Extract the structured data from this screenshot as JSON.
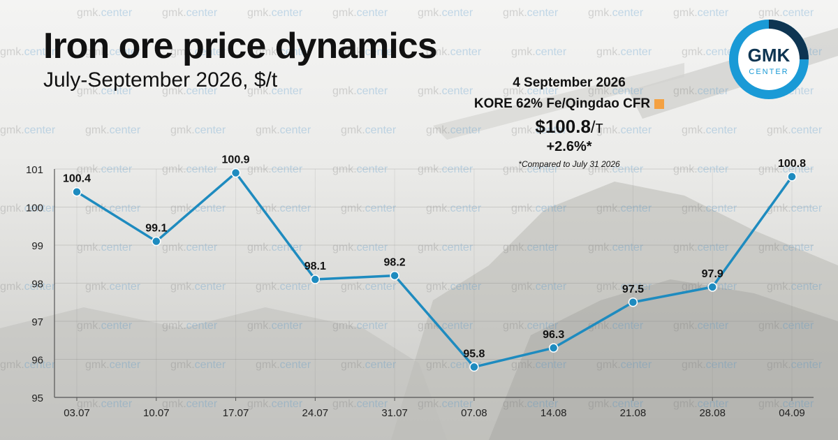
{
  "header": {
    "title": "Iron ore price dynamics",
    "subtitle": "July-September 2026, $/t"
  },
  "info_box": {
    "date": "4 September 2026",
    "product": "KORE 62% Fe/Qingdao CFR",
    "price": "$100.8",
    "price_unit": "/т",
    "change": "+2.6%*",
    "note": "*Compared to July 31 2026",
    "square_color": "#f4a142"
  },
  "logo": {
    "top": "GMK",
    "bottom": "CENTER",
    "ring_color": "#1a9ad6",
    "dark_color": "#0e3552"
  },
  "watermark": {
    "prefix": "gmk.",
    "suffix": "center"
  },
  "chart_data": {
    "type": "line",
    "categories": [
      "03.07",
      "10.07",
      "17.07",
      "24.07",
      "31.07",
      "07.08",
      "14.08",
      "21.08",
      "28.08",
      "04.09"
    ],
    "series": [
      {
        "values": [
          100.4,
          99.1,
          100.9,
          98.1,
          98.2,
          95.8,
          96.3,
          97.5,
          97.9,
          100.8
        ],
        "labels": [
          "100.4",
          "99.1",
          "100.9",
          "98.1",
          "98.2",
          "95.8",
          "96.3",
          "97.5",
          "97.9",
          "100.8"
        ]
      }
    ],
    "ylim": [
      95,
      101
    ],
    "yticks": [
      "95",
      "96",
      "97",
      "98",
      "99",
      "100",
      "101"
    ],
    "line_color": "#1e8bbf",
    "grid": true,
    "xlabel": "",
    "ylabel": ""
  }
}
